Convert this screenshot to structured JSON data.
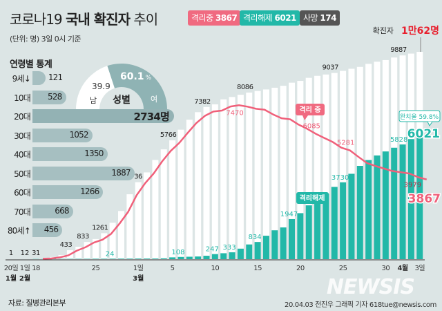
{
  "header": {
    "title_prefix": "코로나19",
    "title_bold": "국내 확진자",
    "title_suffix": "추이",
    "unit_note": "(단위: 명) 3일 0시 기준"
  },
  "badges": [
    {
      "label": "격리중",
      "value": "3867",
      "color": "#f06a80"
    },
    {
      "label": "격리해제",
      "value": "6021",
      "color": "#22b8a8"
    },
    {
      "label": "사망",
      "value": "174",
      "color": "#555555"
    }
  ],
  "age_stats": {
    "title": "연령별 통계",
    "unit": "명",
    "groups": [
      {
        "label": "9세↓",
        "value": 121
      },
      {
        "label": "10대",
        "value": 528
      },
      {
        "label": "20대",
        "value": 2734,
        "display": "2734명"
      },
      {
        "label": "30대",
        "value": 1052
      },
      {
        "label": "40대",
        "value": 1350
      },
      {
        "label": "50대",
        "value": 1887
      },
      {
        "label": "60대",
        "value": 1266
      },
      {
        "label": "70대",
        "value": 668
      },
      {
        "label": "80세↑",
        "value": 456
      }
    ]
  },
  "gender": {
    "title": "성별",
    "male_label": "남",
    "male_pct": 39.9,
    "male_text": "39.9",
    "female_label": "여",
    "female_pct": 60.1,
    "female_text": "60.1",
    "pct_sign": "%",
    "female_color": "#8fb3b4",
    "male_color": "#ffffff"
  },
  "chart_data": {
    "type": "bar",
    "colors": {
      "confirmed": "#ffffff",
      "released": "#22b8a8",
      "isolating": "#f0607a"
    },
    "early_points": [
      {
        "date": "1/20",
        "confirmed": 1,
        "label": "1"
      },
      {
        "date": "2/1",
        "confirmed": 12,
        "label": "12"
      }
    ],
    "dates": [
      "2/18",
      "2/19",
      "2/20",
      "2/21",
      "2/22",
      "2/23",
      "2/24",
      "2/25",
      "2/26",
      "2/27",
      "2/28",
      "2/29",
      "3/1",
      "3/2",
      "3/3",
      "3/4",
      "3/5",
      "3/6",
      "3/7",
      "3/8",
      "3/9",
      "3/10",
      "3/11",
      "3/12",
      "3/13",
      "3/14",
      "3/15",
      "3/16",
      "3/17",
      "3/18",
      "3/19",
      "3/20",
      "3/21",
      "3/22",
      "3/23",
      "3/24",
      "3/25",
      "3/26",
      "3/27",
      "3/28",
      "3/29",
      "3/30",
      "3/31",
      "4/1",
      "4/2",
      "4/3"
    ],
    "series": [
      {
        "name": "확진자",
        "key": "confirmed",
        "values": [
          31,
          51,
          104,
          204,
          433,
          602,
          833,
          977,
          1261,
          1766,
          2337,
          3150,
          3736,
          4212,
          4812,
          5328,
          5766,
          6284,
          6767,
          7134,
          7382,
          7513,
          7755,
          7869,
          7979,
          8086,
          8162,
          8236,
          8320,
          8413,
          8565,
          8652,
          8799,
          8897,
          8961,
          9037,
          9137,
          9241,
          9332,
          9478,
          9583,
          9661,
          9786,
          9887,
          9976,
          10062
        ]
      },
      {
        "name": "격리해제",
        "key": "released",
        "values": [
          12,
          16,
          16,
          16,
          16,
          18,
          18,
          22,
          22,
          24,
          26,
          27,
          30,
          30,
          31,
          41,
          88,
          108,
          118,
          130,
          166,
          247,
          288,
          333,
          510,
          714,
          834,
          1137,
          1401,
          1540,
          1947,
          2233,
          2612,
          2909,
          3166,
          3507,
          3730,
          4144,
          4528,
          4811,
          5033,
          5228,
          5408,
          5567,
          5828,
          6021
        ]
      },
      {
        "name": "격리 중",
        "key": "isolating",
        "type": "line",
        "values": [
          19,
          35,
          87,
          186,
          415,
          579,
          807,
          945,
          1227,
          1729,
          2294,
          3105,
          3688,
          4159,
          4750,
          5255,
          5643,
          6134,
          6605,
          6954,
          7165,
          7212,
          7407,
          7470,
          7402,
          7300,
          7253,
          7024,
          6838,
          6789,
          6527,
          6325,
          6085,
          5884,
          5684,
          5410,
          5281,
          4966,
          4665,
          4523,
          4398,
          4275,
          4216,
          4155,
          3979,
          3867
        ]
      }
    ],
    "data_labels": {
      "confirmed": [
        {
          "date": "2/18",
          "text": "31"
        },
        {
          "date": "2/22",
          "text": "433"
        },
        {
          "date": "2/24",
          "text": "833"
        },
        {
          "date": "2/26",
          "text": "1261"
        },
        {
          "date": "3/1",
          "text": "3736"
        },
        {
          "date": "3/5",
          "text": "5766"
        },
        {
          "date": "3/9",
          "text": "7382"
        },
        {
          "date": "3/14",
          "text": "8086"
        },
        {
          "date": "3/24",
          "text": "9037"
        },
        {
          "date": "4/1",
          "text": "9887"
        }
      ],
      "released": [
        {
          "date": "2/27",
          "text": "24"
        },
        {
          "date": "3/6",
          "text": "108"
        },
        {
          "date": "3/10",
          "text": "247"
        },
        {
          "date": "3/12",
          "text": "333"
        },
        {
          "date": "3/15",
          "text": "834"
        },
        {
          "date": "3/19",
          "text": "1947"
        },
        {
          "date": "3/25",
          "text": "3730"
        },
        {
          "date": "4/2",
          "text": "5828"
        }
      ],
      "isolating": [
        {
          "date": "3/12",
          "text": "7470"
        },
        {
          "date": "3/21",
          "text": "6085"
        },
        {
          "date": "3/25",
          "text": "5281"
        },
        {
          "date": "4/2",
          "text": "3979"
        }
      ]
    },
    "callouts": {
      "total_prefix": "확진자",
      "total_value": "1만62명",
      "isolating_tag": "격리 중",
      "released_tag": "격리해제",
      "recovery_rate": "완치율 59.8%",
      "released_final": "6021",
      "isolating_final": "3867"
    },
    "x_ticks": [
      {
        "date": "1/20",
        "label": "20일",
        "month": "1월"
      },
      {
        "date": "2/1",
        "label": "1일",
        "month": "2월"
      },
      {
        "date": "2/18",
        "label": "18"
      },
      {
        "date": "2/25",
        "label": "25"
      },
      {
        "date": "3/1",
        "label": "1일",
        "month": "3월"
      },
      {
        "date": "3/5",
        "label": "5"
      },
      {
        "date": "3/10",
        "label": "10"
      },
      {
        "date": "3/15",
        "label": "15"
      },
      {
        "date": "3/20",
        "label": "20"
      },
      {
        "date": "3/25",
        "label": "25"
      },
      {
        "date": "3/30",
        "label": "30"
      },
      {
        "date": "4/1",
        "label": "4월",
        "bold": true
      },
      {
        "date": "4/3",
        "label": "3일"
      }
    ],
    "ylim": [
      0,
      10062
    ]
  },
  "footer": {
    "source": "자료: 질병관리본부",
    "credit": "20.04.03 전진우 그래픽 기자 618tue@newsis.com",
    "watermark": "NEWSIS"
  }
}
